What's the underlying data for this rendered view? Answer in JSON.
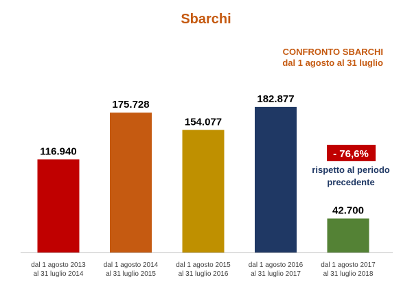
{
  "chart_data": {
    "type": "bar",
    "title": "Sbarchi",
    "subtitle_lines": [
      "CONFRONTO SBARCHI",
      "dal 1 agosto al 31 luglio"
    ],
    "categories": [
      [
        "dal 1 agosto 2013",
        "al 31 luglio 2014"
      ],
      [
        "dal 1 agosto 2014",
        "al 31 luglio 2015"
      ],
      [
        "dal 1 agosto 2015",
        "al 31 luglio 2016"
      ],
      [
        "dal 1 agosto 2016",
        "al 31 luglio 2017"
      ],
      [
        "dal 1 agosto 2017",
        "al 31 luglio 2018"
      ]
    ],
    "values": [
      116940,
      175728,
      154077,
      182877,
      42700
    ],
    "value_labels": [
      "116.940",
      "175.728",
      "154.077",
      "182.877",
      "42.700"
    ],
    "bar_colors": [
      "#c00000",
      "#c55a11",
      "#bf9000",
      "#1f3864",
      "#548235"
    ],
    "ylim": [
      0,
      200000
    ],
    "grid": false,
    "annotation": {
      "badge": "- 76,6%",
      "lines": [
        "rispetto al periodo",
        "precedente"
      ],
      "badge_color": "#c00000",
      "text_color": "#1f3864"
    },
    "colors": {
      "title": "#c55a11",
      "subtitle": "#c55a11",
      "axis": "#bfbfbf",
      "value_text": "#000000",
      "tick_text": "#404040"
    }
  }
}
